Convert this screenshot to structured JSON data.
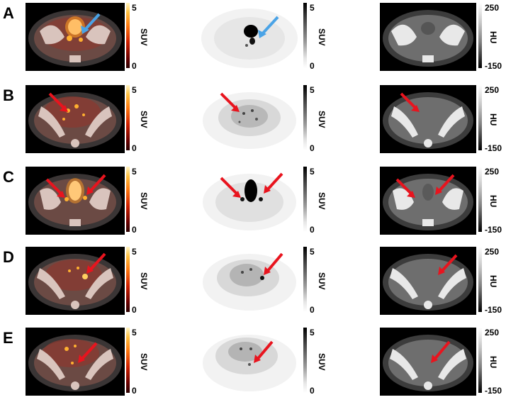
{
  "rows": [
    {
      "letter": "A"
    },
    {
      "letter": "B"
    },
    {
      "letter": "C"
    },
    {
      "letter": "D"
    },
    {
      "letter": "E"
    }
  ],
  "scales": {
    "fusion": {
      "max": "5",
      "min": "0",
      "unit": "SUV"
    },
    "pet": {
      "max": "5",
      "min": "0",
      "unit": "SUV"
    },
    "ct": {
      "max": "250",
      "min": "-150",
      "unit": "HU"
    }
  },
  "colors": {
    "arrow_red": "#e8141e",
    "arrow_blue": "#4aa3e6"
  }
}
